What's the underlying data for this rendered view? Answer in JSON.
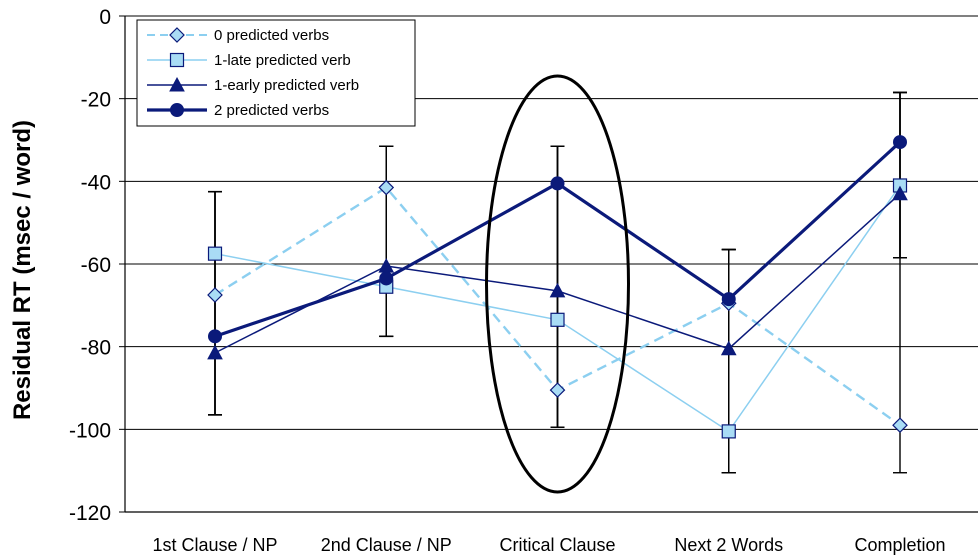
{
  "chart_data": {
    "type": "line",
    "ylabel": "Residual RT (msec / word)",
    "xlabel": "",
    "ylim": [
      -120,
      0
    ],
    "ytick_step": 20,
    "grid": true,
    "legend_position": "top-left",
    "categories": [
      "1st Clause / NP",
      "2nd Clause / NP",
      "Critical Clause",
      "Next 2 Words",
      "Completion"
    ],
    "series": [
      {
        "name": "0 predicted verbs",
        "color": "#8ccff0",
        "dash": true,
        "marker": "diamond",
        "values": [
          -67.5,
          -41.5,
          -90.5,
          -69.5,
          -99
        ],
        "err_low": [
          -96.5,
          -77.5,
          -99.5,
          -110.5,
          -110.5
        ],
        "err_high": [
          -42.5,
          -31.5,
          -31.5,
          -56.5,
          -18.5
        ]
      },
      {
        "name": "1-late predicted verb",
        "color": "#8ccff0",
        "dash": false,
        "marker": "square",
        "values": [
          -57.5,
          -65.5,
          -73.5,
          -100.5,
          -41
        ],
        "err_low": [
          -96.5,
          -77.5,
          -99.5,
          -110.5,
          -58.5
        ],
        "err_high": [
          -42.5,
          -31.5,
          -31.5,
          -56.5,
          -18.5
        ]
      },
      {
        "name": "1-early predicted verb",
        "color": "#0b1a7a",
        "dash": false,
        "marker": "triangle",
        "values": [
          -81.5,
          -60.5,
          -66.5,
          -80.5,
          -43
        ],
        "err_low": [
          -96.5,
          -77.5,
          -99.5,
          -110.5,
          -58.5
        ],
        "err_high": [
          -42.5,
          -31.5,
          -31.5,
          -56.5,
          -18.5
        ]
      },
      {
        "name": "2 predicted verbs",
        "color": "#0b1a7a",
        "dash": false,
        "marker": "circle",
        "values": [
          -77.5,
          -63.5,
          -40.5,
          -68.5,
          -30.5
        ],
        "err_low": [
          -96.5,
          -77.5,
          -99.5,
          -110.5,
          -58.5
        ],
        "err_high": [
          -42.5,
          -31.5,
          -31.5,
          -56.5,
          -18.5
        ]
      }
    ],
    "annotation": "ellipse around Critical Clause"
  }
}
